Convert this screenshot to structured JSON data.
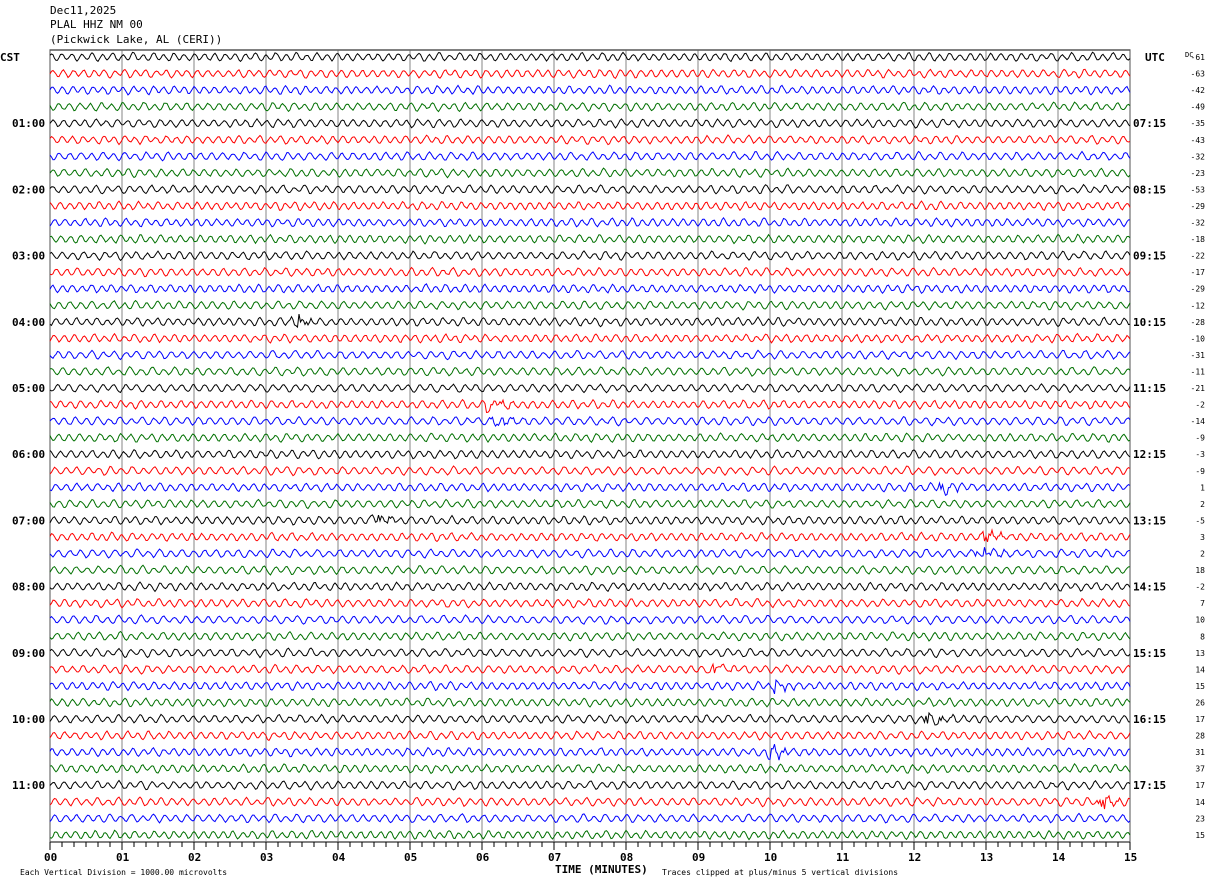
{
  "header": {
    "date": "Dec11,2025",
    "station": "PLAL HHZ NM 00",
    "location": "(Pickwick Lake, AL (CERI))"
  },
  "chart_data": {
    "type": "line",
    "title": "PLAL HHZ NM 00 helicorder",
    "left_axis_label": "CST",
    "right_axis_label": "UTC",
    "dc_label": "DC",
    "xlabel": "TIME (MINUTES)",
    "xlim": [
      0,
      15
    ],
    "x_ticks": [
      "00",
      "01",
      "02",
      "03",
      "04",
      "05",
      "06",
      "07",
      "08",
      "09",
      "10",
      "11",
      "12",
      "13",
      "14",
      "15"
    ],
    "trace_colors": [
      "#000000",
      "#ff0000",
      "#0000ff",
      "#007000"
    ],
    "rows_per_hour": 4,
    "left_hour_labels": [
      {
        "row": 4,
        "label": "01:00"
      },
      {
        "row": 8,
        "label": "02:00"
      },
      {
        "row": 12,
        "label": "03:00"
      },
      {
        "row": 16,
        "label": "04:00"
      },
      {
        "row": 20,
        "label": "05:00"
      },
      {
        "row": 24,
        "label": "06:00"
      },
      {
        "row": 28,
        "label": "07:00"
      },
      {
        "row": 32,
        "label": "08:00"
      },
      {
        "row": 36,
        "label": "09:00"
      },
      {
        "row": 40,
        "label": "10:00"
      },
      {
        "row": 44,
        "label": "11:00"
      }
    ],
    "right_hour_labels": [
      {
        "row": 4,
        "label": "07:15"
      },
      {
        "row": 8,
        "label": "08:15"
      },
      {
        "row": 12,
        "label": "09:15"
      },
      {
        "row": 16,
        "label": "10:15"
      },
      {
        "row": 20,
        "label": "11:15"
      },
      {
        "row": 24,
        "label": "12:15"
      },
      {
        "row": 28,
        "label": "13:15"
      },
      {
        "row": 32,
        "label": "14:15"
      },
      {
        "row": 36,
        "label": "15:15"
      },
      {
        "row": 40,
        "label": "16:15"
      },
      {
        "row": 44,
        "label": "17:15"
      }
    ],
    "dc_offsets": [
      "-61",
      "-63",
      "-42",
      "-49",
      "-35",
      "-43",
      "-32",
      "-23",
      "-53",
      "-29",
      "-32",
      "-18",
      "-22",
      "-17",
      "-29",
      "-12",
      "-28",
      "-10",
      "-31",
      "-11",
      "-21",
      "-2",
      "-14",
      "-9",
      "-3",
      "-9",
      "1",
      "2",
      "-5",
      "3",
      "2",
      "18",
      "-2",
      "7",
      "10",
      "8",
      "13",
      "14",
      "15",
      "26",
      "17",
      "28",
      "31",
      "37",
      "17",
      "14",
      "23",
      "15"
    ],
    "events": [
      {
        "row": 16,
        "minute": 3.4
      },
      {
        "row": 21,
        "minute": 6.1
      },
      {
        "row": 22,
        "minute": 6.2
      },
      {
        "row": 26,
        "minute": 12.4
      },
      {
        "row": 28,
        "minute": 4.5
      },
      {
        "row": 29,
        "minute": 13.0
      },
      {
        "row": 30,
        "minute": 12.9
      },
      {
        "row": 37,
        "minute": 9.2
      },
      {
        "row": 38,
        "minute": 10.1
      },
      {
        "row": 40,
        "minute": 12.2
      },
      {
        "row": 42,
        "minute": 10.0
      },
      {
        "row": 45,
        "minute": 14.6
      }
    ],
    "footnote_left": "Each Vertical Division = 1000.00 microvolts",
    "footnote_right": "Traces clipped at plus/minus 5 vertical divisions"
  }
}
